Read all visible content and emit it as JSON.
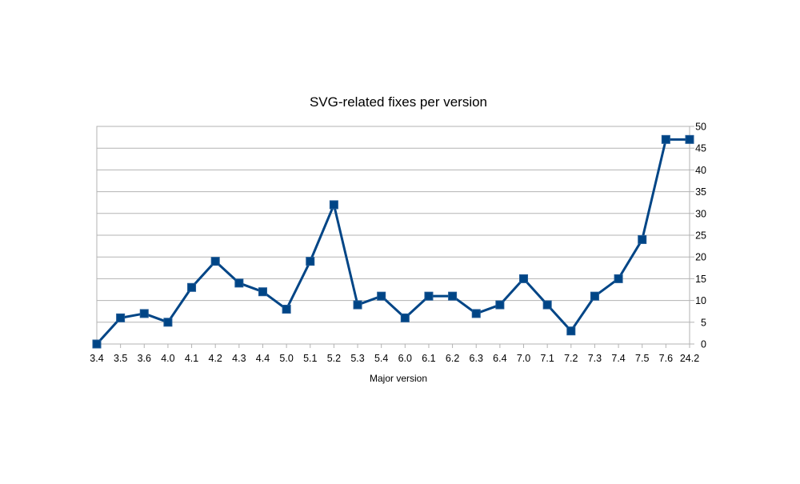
{
  "chart_data": {
    "type": "line",
    "title": "SVG-related fixes per version",
    "xlabel": "Major version",
    "ylabel": "",
    "categories": [
      "3.4",
      "3.5",
      "3.6",
      "4.0",
      "4.1",
      "4.2",
      "4.3",
      "4.4",
      "5.0",
      "5.1",
      "5.2",
      "5.3",
      "5.4",
      "6.0",
      "6.1",
      "6.2",
      "6.3",
      "6.4",
      "7.0",
      "7.1",
      "7.2",
      "7.3",
      "7.4",
      "7.5",
      "7.6",
      "24.2"
    ],
    "series": [
      {
        "values": [
          0,
          6,
          7,
          5,
          13,
          19,
          14,
          12,
          8,
          19,
          32,
          9,
          11,
          6,
          11,
          11,
          7,
          9,
          15,
          9,
          3,
          11,
          15,
          24,
          47,
          47
        ],
        "color": "#004586",
        "marker": "square"
      }
    ],
    "ylim": [
      0,
      50
    ],
    "yticks": [
      0,
      5,
      10,
      15,
      20,
      25,
      30,
      35,
      40,
      45,
      50
    ],
    "yaxis_position": "right",
    "grid": true,
    "legend": "none"
  }
}
